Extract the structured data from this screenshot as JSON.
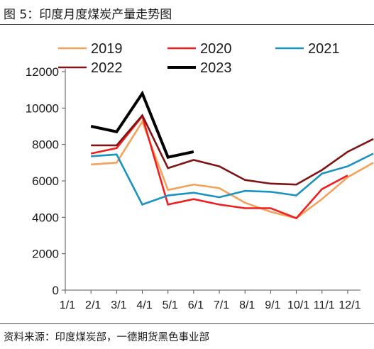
{
  "figure": {
    "title": "图 5：印度月度煤炭产量走势图",
    "source": "资料来源：印度煤炭部，一德期货黑色事业部"
  },
  "chart_data": {
    "type": "line",
    "title": "",
    "xlabel": "",
    "ylabel": "",
    "ylim": [
      0,
      12000
    ],
    "yticks": [
      0,
      2000,
      4000,
      6000,
      8000,
      10000,
      12000
    ],
    "categories": [
      "1/1",
      "2/1",
      "3/1",
      "4/1",
      "5/1",
      "6/1",
      "7/1",
      "8/1",
      "9/1",
      "10/1",
      "11/1",
      "12/1"
    ],
    "grid": false,
    "legend": "top",
    "series": [
      {
        "name": "2019",
        "color": "#f4a15a",
        "x": [
          1,
          2,
          3,
          4,
          5,
          6,
          7,
          8,
          9,
          10,
          11,
          12
        ],
        "values": [
          6900,
          7000,
          9250,
          5500,
          5800,
          5600,
          4800,
          4300,
          3950,
          5000,
          6200,
          7000
        ]
      },
      {
        "name": "2020",
        "color": "#f01e1e",
        "x": [
          1,
          2,
          3,
          4,
          5,
          6,
          7,
          8,
          9,
          10,
          11
        ],
        "values": [
          7500,
          7800,
          9550,
          4700,
          5000,
          4700,
          4500,
          4500,
          3950,
          5550,
          6300
        ]
      },
      {
        "name": "2021",
        "color": "#1b93c0",
        "x": [
          1,
          2,
          3,
          4,
          5,
          6,
          7,
          8,
          9,
          10,
          11,
          12
        ],
        "values": [
          7350,
          7450,
          4700,
          5200,
          5350,
          5100,
          5450,
          5400,
          5200,
          6400,
          6800,
          7500
        ]
      },
      {
        "name": "2022",
        "color": "#7e1414",
        "x": [
          1,
          2,
          3,
          4,
          5,
          6,
          7,
          8,
          9,
          10,
          11,
          12
        ],
        "values": [
          7950,
          7950,
          9600,
          6700,
          7150,
          6800,
          6050,
          5850,
          5800,
          6600,
          7600,
          8300
        ]
      },
      {
        "name": "2023",
        "color": "#000000",
        "x": [
          1,
          2,
          3,
          4,
          5
        ],
        "values": [
          9000,
          8700,
          10800,
          7300,
          7600
        ]
      }
    ]
  }
}
